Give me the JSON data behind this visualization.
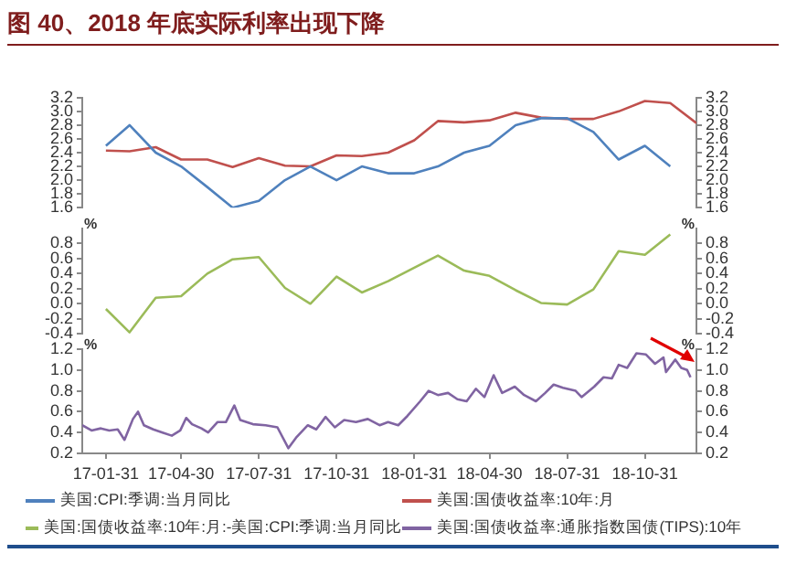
{
  "chart_data": [
    {
      "type": "line",
      "title": "图 40、2018 年底实际利率出现下降",
      "xlim": [
        "2017-01-03",
        "2018-12-31"
      ],
      "tick_labels": "y",
      "legend": "bottom",
      "marker": "none",
      "line_style": "solid",
      "grid": false,
      "ylim": [
        1.6,
        3.2
      ],
      "yticks": [
        1.6,
        1.8,
        {
          "value": 2,
          "label": "2.0"
        },
        2.2,
        2.4,
        2.6,
        2.8,
        {
          "value": 3,
          "label": "3.0"
        },
        3.2
      ],
      "y2lim": [
        1.6,
        3.2
      ],
      "y2ticks": [
        1.6,
        1.8,
        {
          "value": 2,
          "label": "2.0"
        },
        2.2,
        2.4,
        2.6,
        2.8,
        {
          "value": 3,
          "label": "3.0"
        },
        3.2
      ],
      "x": [
        "2017-01-31",
        "2017-02-28",
        "2017-03-31",
        "2017-04-30",
        "2017-05-31",
        "2017-06-30",
        "2017-07-31",
        "2017-08-31",
        "2017-09-30",
        "2017-10-31",
        "2017-11-30",
        "2017-12-31",
        "2018-01-31",
        "2018-02-28",
        "2018-03-31",
        "2018-04-30",
        "2018-05-31",
        "2018-06-30",
        "2018-07-31",
        "2018-08-31",
        "2018-09-30",
        "2018-10-31",
        "2018-11-30",
        "2018-12-31"
      ],
      "series": [
        {
          "name": "美国:CPI:季调:当月同比",
          "color": "#4f81bd",
          "values": [
            2.5,
            2.8,
            2.4,
            2.2,
            1.9,
            1.6,
            1.7,
            2.0,
            2.2,
            2.0,
            2.2,
            2.1,
            2.1,
            2.2,
            2.4,
            2.5,
            2.8,
            2.9,
            2.9,
            2.7,
            2.3,
            2.5,
            2.2,
            null
          ]
        },
        {
          "name": "美国:国债收益率:10年:月",
          "color": "#c0504d",
          "values": [
            2.43,
            2.42,
            2.48,
            2.3,
            2.3,
            2.19,
            2.32,
            2.21,
            2.2,
            2.36,
            2.35,
            2.4,
            2.58,
            2.86,
            2.84,
            2.87,
            2.98,
            2.91,
            2.89,
            2.89,
            3.0,
            3.15,
            3.12,
            2.83
          ]
        }
      ]
    },
    {
      "type": "line",
      "ylabel": "%",
      "y2label": "%",
      "xlim": [
        "2017-01-03",
        "2018-12-31"
      ],
      "tick_labels": "y",
      "legend": "bottom",
      "marker": "none",
      "line_style": "solid",
      "grid": false,
      "ylim": [
        -0.4,
        1.0
      ],
      "yticks": [
        -0.4,
        -0.2,
        {
          "value": 0,
          "label": "0.0"
        },
        0.2,
        0.4,
        0.6,
        0.8
      ],
      "y2lim": [
        -0.4,
        1.0
      ],
      "y2ticks": [
        -0.4,
        -0.2,
        {
          "value": 0,
          "label": "0.0"
        },
        0.2,
        0.4,
        0.6,
        0.8
      ],
      "x": [
        "2017-01-31",
        "2017-02-28",
        "2017-03-31",
        "2017-04-30",
        "2017-05-31",
        "2017-06-30",
        "2017-07-31",
        "2017-08-31",
        "2017-09-30",
        "2017-10-31",
        "2017-11-30",
        "2017-12-31",
        "2018-01-31",
        "2018-02-28",
        "2018-03-31",
        "2018-04-30",
        "2018-05-31",
        "2018-06-30",
        "2018-07-31",
        "2018-08-31",
        "2018-09-30",
        "2018-10-31",
        "2018-11-30"
      ],
      "series": [
        {
          "name": "美国:国债收益率:10年:月:-美国:CPI:季调:当月同比",
          "color": "#9bbb59",
          "values": [
            -0.07,
            -0.38,
            0.08,
            0.1,
            0.4,
            0.59,
            0.62,
            0.21,
            0.0,
            0.36,
            0.15,
            0.3,
            0.48,
            0.64,
            0.44,
            0.37,
            0.18,
            0.01,
            -0.01,
            0.19,
            0.7,
            0.65,
            0.92
          ]
        }
      ]
    },
    {
      "type": "line",
      "ylabel": "%",
      "y2label": "%",
      "xlim": [
        "2017-01-03",
        "2018-12-31"
      ],
      "legend": "bottom",
      "marker": "none",
      "line_style": "solid",
      "grid": false,
      "ylim": [
        0.2,
        1.2
      ],
      "yticks": [
        0.2,
        0.4,
        0.6,
        0.8,
        {
          "value": 1,
          "label": "1.0"
        },
        1.2
      ],
      "y2lim": [
        0.2,
        1.2
      ],
      "y2ticks": [
        0.2,
        0.4,
        0.6,
        0.8,
        {
          "value": 1,
          "label": "1.0"
        },
        1.2
      ],
      "xticks": [
        {
          "value": "2017-01-31",
          "label": "17-01-31"
        },
        {
          "value": "2017-04-30",
          "label": "17-04-30"
        },
        {
          "value": "2017-07-31",
          "label": "17-07-31"
        },
        {
          "value": "2017-10-31",
          "label": "17-10-31"
        },
        {
          "value": "2018-01-31",
          "label": "18-01-31"
        },
        {
          "value": "2018-04-30",
          "label": "18-04-30"
        },
        {
          "value": "2018-07-31",
          "label": "18-07-31"
        },
        {
          "value": "2018-10-31",
          "label": "18-10-31"
        }
      ],
      "series": [
        {
          "name": "美国:国债收益率:通胀指数国债(TIPS):10年",
          "color": "#8064a2",
          "x": [
            "2017-01-03",
            "2017-01-14",
            "2017-01-25",
            "2017-02-04",
            "2017-02-14",
            "2017-02-22",
            "2017-02-28",
            "2017-03-04",
            "2017-03-10",
            "2017-03-17",
            "2017-03-28",
            "2017-04-08",
            "2017-04-19",
            "2017-04-29",
            "2017-05-06",
            "2017-05-13",
            "2017-05-24",
            "2017-06-01",
            "2017-06-12",
            "2017-06-22",
            "2017-07-02",
            "2017-07-09",
            "2017-07-24",
            "2017-08-08",
            "2017-08-22",
            "2017-09-04",
            "2017-09-13",
            "2017-09-27",
            "2017-10-07",
            "2017-10-18",
            "2017-10-29",
            "2017-11-09",
            "2017-11-23",
            "2017-12-07",
            "2017-12-21",
            "2017-12-31",
            "2018-01-12",
            "2018-01-23",
            "2018-02-07",
            "2018-02-17",
            "2018-02-28",
            "2018-03-12",
            "2018-03-23",
            "2018-04-03",
            "2018-04-14",
            "2018-04-24",
            "2018-05-05",
            "2018-05-15",
            "2018-05-30",
            "2018-06-10",
            "2018-06-24",
            "2018-07-05",
            "2018-07-15",
            "2018-07-26",
            "2018-08-10",
            "2018-08-17",
            "2018-09-01",
            "2018-09-12",
            "2018-09-22",
            "2018-09-30",
            "2018-10-10",
            "2018-10-21",
            "2018-11-01",
            "2018-11-12",
            "2018-11-22",
            "2018-11-25",
            "2018-12-06",
            "2018-12-13",
            "2018-12-20",
            "2018-12-24"
          ],
          "values": [
            0.47,
            0.42,
            0.44,
            0.42,
            0.43,
            0.33,
            0.45,
            0.53,
            0.6,
            0.47,
            0.43,
            0.4,
            0.37,
            0.42,
            0.54,
            0.48,
            0.44,
            0.4,
            0.5,
            0.5,
            0.66,
            0.52,
            0.48,
            0.47,
            0.45,
            0.25,
            0.35,
            0.47,
            0.43,
            0.55,
            0.45,
            0.52,
            0.5,
            0.53,
            0.47,
            0.5,
            0.47,
            0.56,
            0.7,
            0.8,
            0.76,
            0.78,
            0.72,
            0.7,
            0.82,
            0.74,
            0.95,
            0.78,
            0.84,
            0.76,
            0.7,
            0.78,
            0.86,
            0.83,
            0.8,
            0.74,
            0.84,
            0.93,
            0.92,
            1.05,
            1.02,
            1.16,
            1.15,
            1.06,
            1.12,
            0.98,
            1.1,
            1.02,
            1.0,
            0.93
          ]
        }
      ]
    }
  ]
}
